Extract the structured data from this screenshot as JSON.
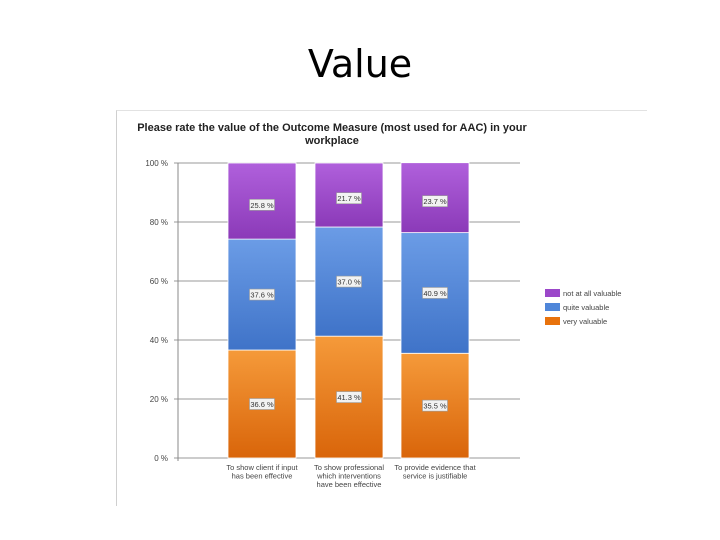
{
  "slide": {
    "title": "Value"
  },
  "chart_data": {
    "type": "bar",
    "stacked": true,
    "title": "Please rate the value of the Outcome Measure (most used for AAC) in your workplace",
    "categories": [
      [
        "To show client if input",
        "has been effective"
      ],
      [
        "To show professional",
        "which interventions",
        "have been effective"
      ],
      [
        "To provide evidence that",
        "service is justifiable"
      ]
    ],
    "series": [
      {
        "name": "very valuable",
        "color": "#e8720c",
        "values": [
          36.6,
          41.3,
          35.5
        ],
        "labels": [
          "36.6 %",
          "41.3 %",
          "35.5 %"
        ]
      },
      {
        "name": "quite valuable",
        "color": "#4f86d9",
        "values": [
          37.6,
          37.0,
          40.9
        ],
        "labels": [
          "37.6 %",
          "37.0 %",
          "40.9 %"
        ]
      },
      {
        "name": "not at all valuable",
        "color": "#9b47c9",
        "values": [
          25.8,
          21.7,
          23.7
        ],
        "labels": [
          "25.8 %",
          "21.7 %",
          "23.7 %"
        ]
      }
    ],
    "legend_entries": [
      "not at all valuable",
      "quite valuable",
      "very valuable"
    ],
    "yticks": [
      "0 %",
      "20 %",
      "40 %",
      "60 %",
      "80 %",
      "100 %"
    ],
    "ylim": [
      0,
      100
    ],
    "grid": true,
    "legend_position": "right"
  }
}
